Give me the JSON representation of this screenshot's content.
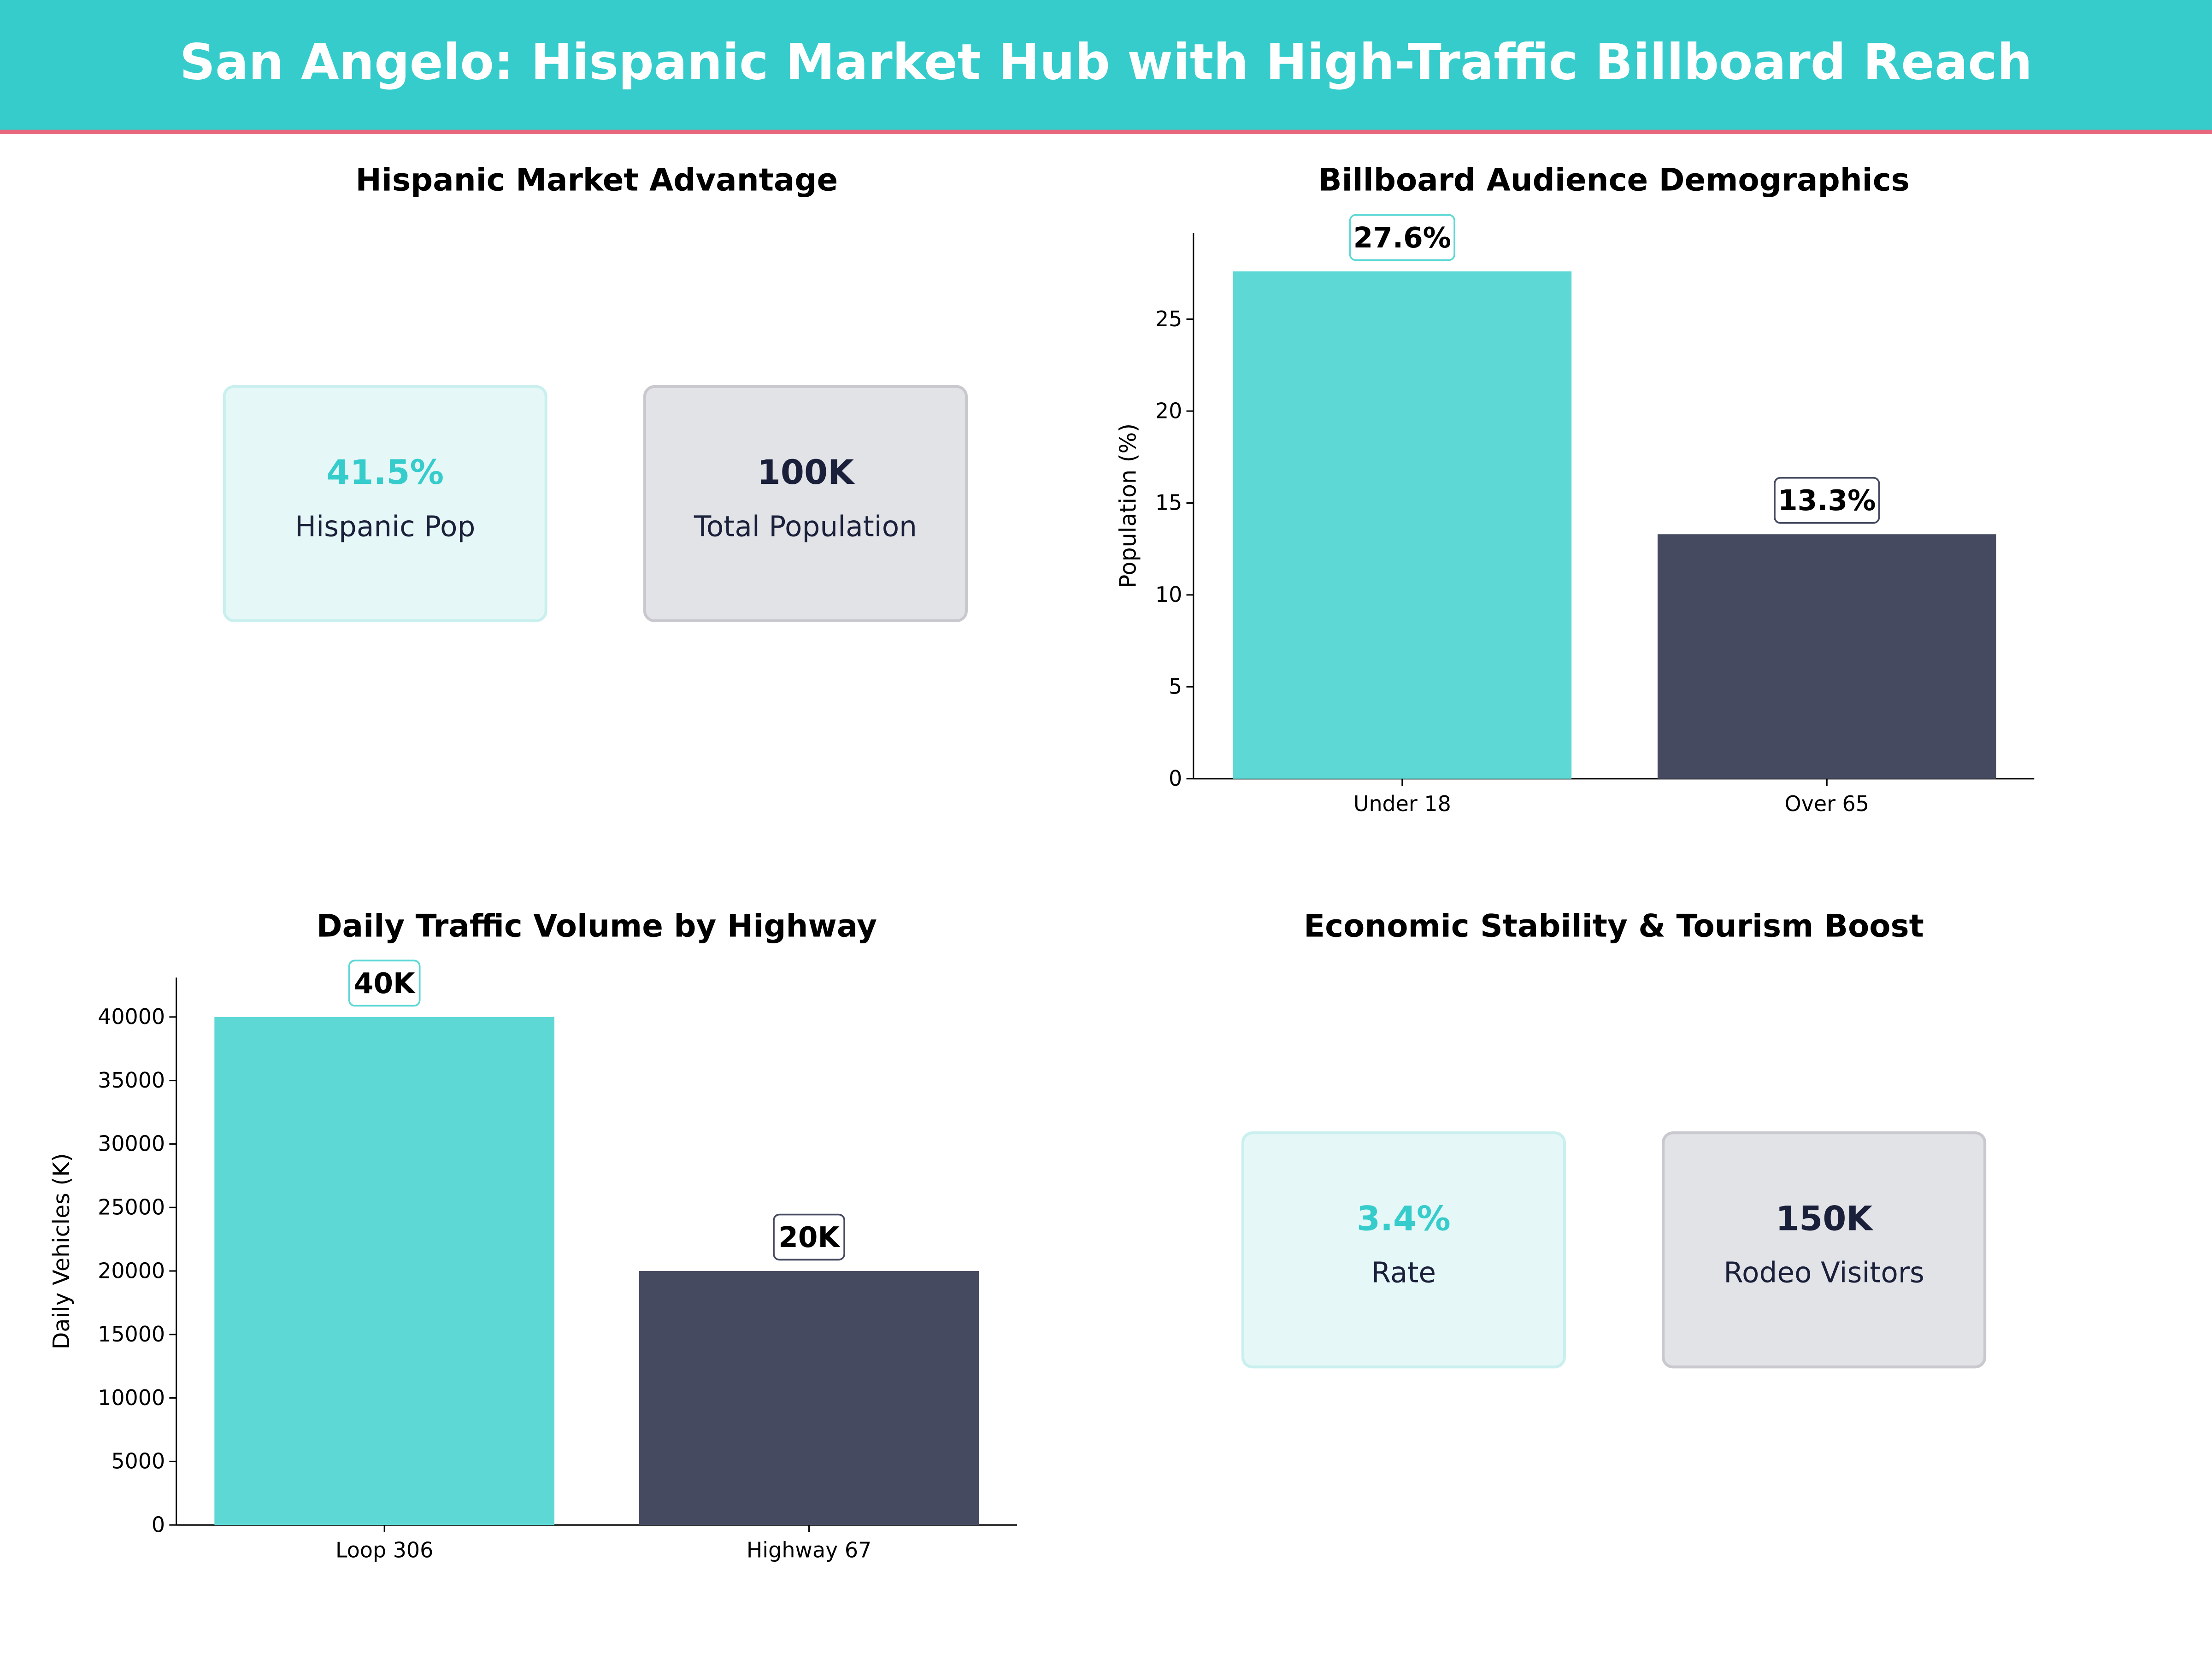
{
  "title": "San Angelo: Hispanic Market Hub with High-Traffic Billboard Reach",
  "colors": {
    "header": "#36cccc",
    "accent_line": "#e8677d",
    "teal": "#5dd8d5",
    "navy": "#454a60"
  },
  "panels": {
    "market": {
      "title": "Hispanic Market Advantage",
      "cards": [
        {
          "value": "41.5%",
          "label": "Hispanic Pop"
        },
        {
          "value": "100K",
          "label": "Total Population"
        }
      ]
    },
    "economy": {
      "title": "Economic Stability & Tourism Boost",
      "cards": [
        {
          "value": "3.4%",
          "label": "Rate"
        },
        {
          "value": "150K",
          "label": "Rodeo Visitors"
        }
      ]
    }
  },
  "chart_data": [
    {
      "type": "bar",
      "title": "Billboard Audience Demographics",
      "categories": [
        "Under 18",
        "Over 65"
      ],
      "values": [
        27.6,
        13.3
      ],
      "data_labels": [
        "27.6%",
        "13.3%"
      ],
      "colors": [
        "#5dd8d5",
        "#454a60"
      ],
      "xlabel": "",
      "ylabel": "Population (%)",
      "ylim": [
        0,
        29.7
      ],
      "yticks": [
        0,
        5,
        10,
        15,
        20,
        25
      ],
      "grid": false
    },
    {
      "type": "bar",
      "title": "Daily Traffic Volume by Highway",
      "categories": [
        "Loop 306",
        "Highway 67"
      ],
      "values": [
        40000,
        20000
      ],
      "data_labels": [
        "40K",
        "20K"
      ],
      "colors": [
        "#5dd8d5",
        "#454a60"
      ],
      "xlabel": "",
      "ylabel": "Daily Vehicles (K)",
      "ylim": [
        0,
        43100
      ],
      "yticks": [
        0,
        5000,
        10000,
        15000,
        20000,
        25000,
        30000,
        35000,
        40000
      ],
      "grid": false
    }
  ]
}
